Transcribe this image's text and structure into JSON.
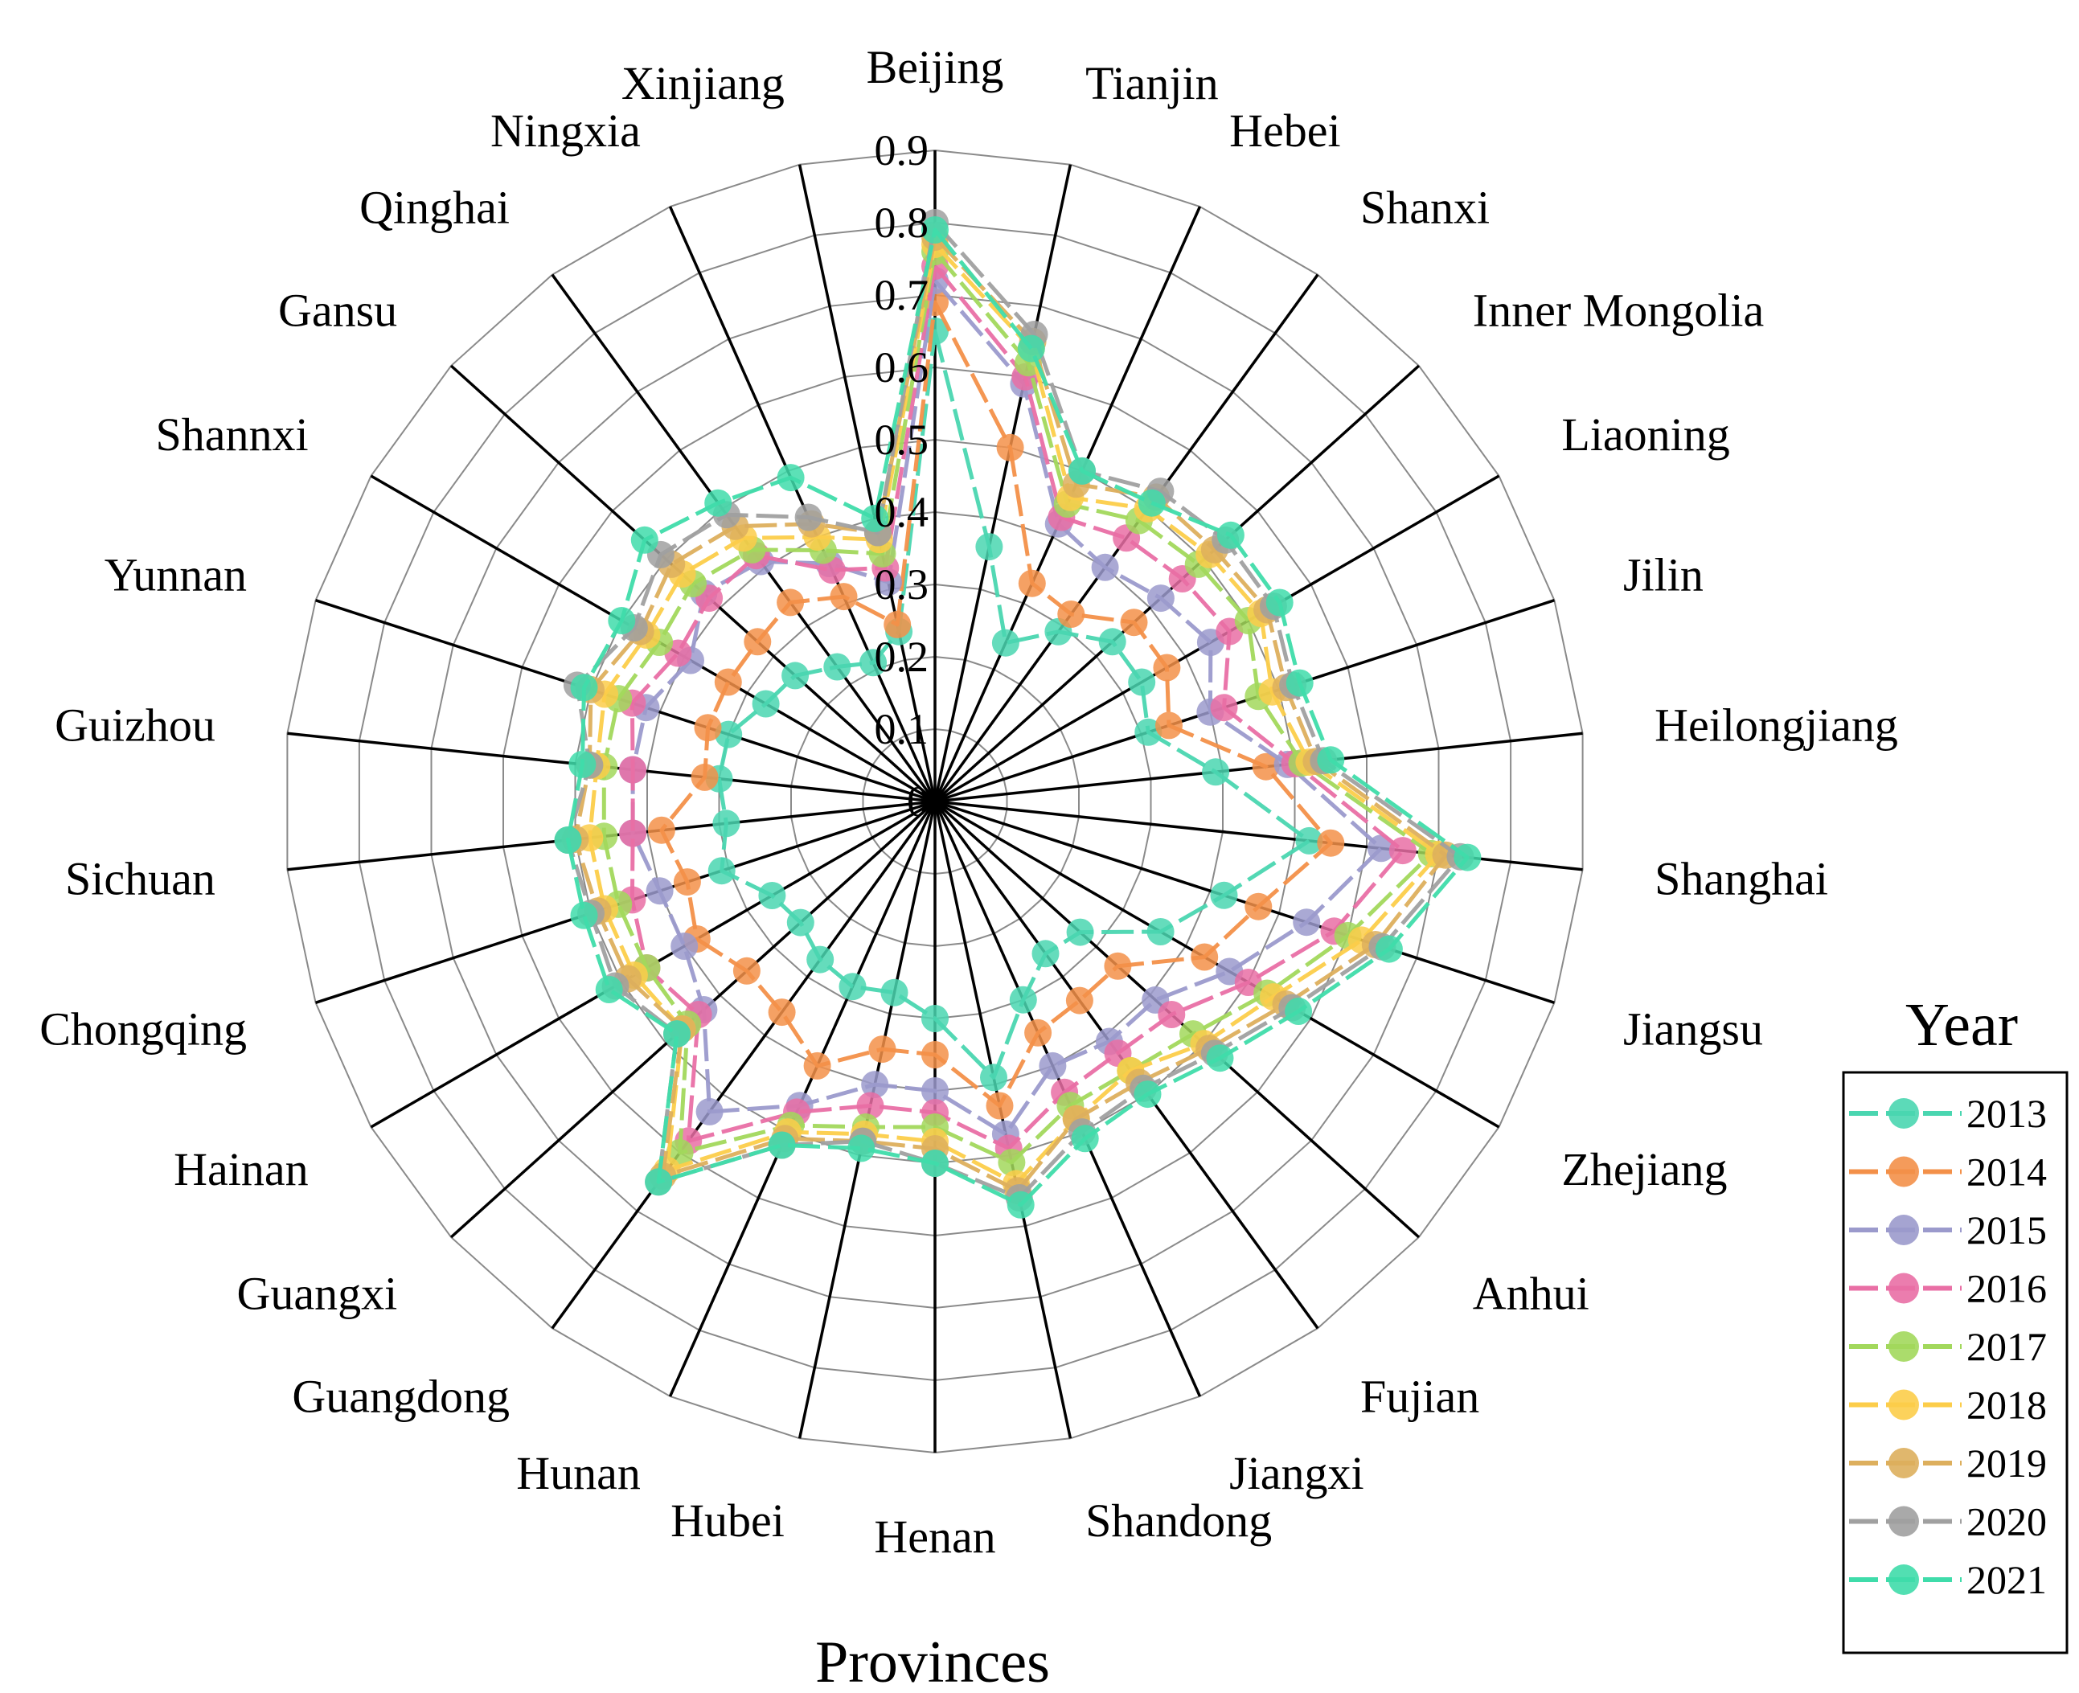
{
  "chart_data": {
    "type": "radar",
    "xlabel": "Provinces",
    "legend_title": "Year",
    "legend_position": "bottom-right",
    "rlim": [
      0,
      0.9
    ],
    "ticks": [
      0,
      0.1,
      0.2,
      0.3,
      0.4,
      0.5,
      0.6,
      0.7,
      0.8,
      0.9
    ],
    "tick_labels": [
      "0",
      "0.1",
      "0.2",
      "0.3",
      "0.4",
      "0.5",
      "0.6",
      "0.7",
      "0.8",
      "0.9"
    ],
    "categories": [
      "Beijing",
      "Tianjin",
      "Hebei",
      "Shanxi",
      "Inner Mongolia",
      "Liaoning",
      "Jilin",
      "Heilongjiang",
      "Shanghai",
      "Jiangsu",
      "Zhejiang",
      "Anhui",
      "Fujian",
      "Jiangxi",
      "Shandong",
      "Henan",
      "Hubei",
      "Hunan",
      "Guangdong",
      "Guangxi",
      "Hainan",
      "Chongqing",
      "Sichuan",
      "Guizhou",
      "Yunnan",
      "Shannxi",
      "Gansu",
      "Qinghai",
      "Ningxia",
      "Xinjiang"
    ],
    "series": [
      {
        "name": "2013",
        "color": "#4ad6b0",
        "values": [
          0.65,
          0.36,
          0.24,
          0.29,
          0.33,
          0.33,
          0.31,
          0.39,
          0.52,
          0.42,
          0.36,
          0.27,
          0.26,
          0.3,
          0.39,
          0.3,
          0.27,
          0.28,
          0.27,
          0.25,
          0.26,
          0.31,
          0.29,
          0.3,
          0.3,
          0.27,
          0.26,
          0.23,
          0.21,
          0.24
        ]
      },
      {
        "name": "2014",
        "color": "#f39049",
        "values": [
          0.69,
          0.5,
          0.33,
          0.32,
          0.37,
          0.37,
          0.34,
          0.46,
          0.55,
          0.47,
          0.43,
          0.34,
          0.34,
          0.35,
          0.43,
          0.35,
          0.35,
          0.4,
          0.36,
          0.35,
          0.38,
          0.36,
          0.38,
          0.32,
          0.33,
          0.33,
          0.33,
          0.34,
          0.31,
          0.25
        ]
      },
      {
        "name": "2015",
        "color": "#9b9acc",
        "values": [
          0.72,
          0.59,
          0.42,
          0.4,
          0.42,
          0.44,
          0.4,
          0.49,
          0.62,
          0.54,
          0.47,
          0.41,
          0.41,
          0.4,
          0.47,
          0.4,
          0.4,
          0.46,
          0.53,
          0.43,
          0.4,
          0.4,
          0.42,
          0.42,
          0.42,
          0.39,
          0.43,
          0.41,
          0.36,
          0.31
        ]
      },
      {
        "name": "2016",
        "color": "#e96fa5",
        "values": [
          0.74,
          0.6,
          0.43,
          0.45,
          0.46,
          0.47,
          0.42,
          0.5,
          0.65,
          0.58,
          0.5,
          0.44,
          0.43,
          0.44,
          0.49,
          0.43,
          0.43,
          0.47,
          0.58,
          0.44,
          0.46,
          0.44,
          0.42,
          0.42,
          0.44,
          0.41,
          0.42,
          0.42,
          0.35,
          0.33
        ]
      },
      {
        "name": "2017",
        "color": "#a2d85c",
        "values": [
          0.76,
          0.62,
          0.45,
          0.48,
          0.49,
          0.5,
          0.47,
          0.51,
          0.69,
          0.6,
          0.53,
          0.48,
          0.46,
          0.46,
          0.51,
          0.45,
          0.46,
          0.49,
          0.6,
          0.46,
          0.46,
          0.46,
          0.46,
          0.46,
          0.46,
          0.44,
          0.45,
          0.43,
          0.38,
          0.35
        ]
      },
      {
        "name": "2018",
        "color": "#fccd4a",
        "values": [
          0.77,
          0.64,
          0.46,
          0.5,
          0.51,
          0.52,
          0.49,
          0.52,
          0.7,
          0.62,
          0.54,
          0.5,
          0.46,
          0.48,
          0.54,
          0.47,
          0.47,
          0.5,
          0.63,
          0.47,
          0.48,
          0.48,
          0.48,
          0.47,
          0.48,
          0.46,
          0.47,
          0.45,
          0.4,
          0.37
        ]
      },
      {
        "name": "2019",
        "color": "#ddaf5d",
        "values": [
          0.78,
          0.65,
          0.48,
          0.52,
          0.52,
          0.53,
          0.51,
          0.53,
          0.71,
          0.64,
          0.56,
          0.51,
          0.48,
          0.48,
          0.55,
          0.48,
          0.48,
          0.51,
          0.64,
          0.47,
          0.49,
          0.49,
          0.5,
          0.48,
          0.5,
          0.47,
          0.49,
          0.47,
          0.42,
          0.38
        ]
      },
      {
        "name": "2020",
        "color": "#a0a0a0",
        "values": [
          0.8,
          0.66,
          0.5,
          0.53,
          0.54,
          0.54,
          0.52,
          0.54,
          0.73,
          0.65,
          0.57,
          0.52,
          0.49,
          0.5,
          0.56,
          0.5,
          0.48,
          0.52,
          0.65,
          0.48,
          0.51,
          0.5,
          0.51,
          0.48,
          0.52,
          0.48,
          0.51,
          0.49,
          0.43,
          0.38
        ]
      },
      {
        "name": "2021",
        "color": "#3fdcaa",
        "values": [
          0.79,
          0.64,
          0.5,
          0.51,
          0.55,
          0.55,
          0.53,
          0.55,
          0.74,
          0.66,
          0.58,
          0.53,
          0.5,
          0.51,
          0.57,
          0.5,
          0.49,
          0.52,
          0.65,
          0.48,
          0.52,
          0.51,
          0.51,
          0.49,
          0.51,
          0.5,
          0.54,
          0.51,
          0.49,
          0.4
        ]
      }
    ]
  }
}
